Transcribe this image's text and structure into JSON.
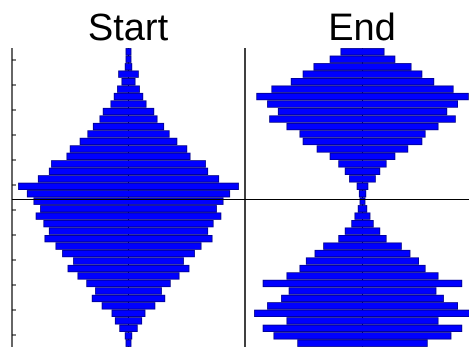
{
  "chart_data": [
    {
      "type": "bar",
      "orientation": "horizontal",
      "title": "Start",
      "xlabel": "",
      "ylabel": "",
      "ylim": [
        -1.0,
        1.0
      ],
      "color": "#0000ff",
      "grid": false,
      "bin_centers": [
        -0.975,
        -0.925,
        -0.875,
        -0.825,
        -0.775,
        -0.725,
        -0.675,
        -0.625,
        -0.575,
        -0.525,
        -0.475,
        -0.425,
        -0.375,
        -0.325,
        -0.275,
        -0.225,
        -0.175,
        -0.125,
        -0.075,
        -0.025,
        0.025,
        0.075,
        0.125,
        0.175,
        0.225,
        0.275,
        0.325,
        0.375,
        0.425,
        0.475,
        0.525,
        0.575,
        0.625,
        0.675,
        0.725,
        0.775,
        0.825,
        0.875,
        0.925,
        0.975
      ],
      "values": [
        0.005,
        0.03,
        0.08,
        0.12,
        0.15,
        0.24,
        0.33,
        0.3,
        0.38,
        0.46,
        0.55,
        0.5,
        0.6,
        0.66,
        0.76,
        0.72,
        0.77,
        0.84,
        0.8,
        0.86,
        0.92,
        1.0,
        0.82,
        0.72,
        0.7,
        0.56,
        0.53,
        0.44,
        0.37,
        0.32,
        0.26,
        0.23,
        0.16,
        0.13,
        0.1,
        0.06,
        0.09,
        0.03,
        0.02,
        0.005
      ]
    },
    {
      "type": "bar",
      "orientation": "horizontal",
      "title": "End",
      "xlabel": "",
      "ylabel": "",
      "ylim": [
        -1.0,
        1.0
      ],
      "color": "#0000ff",
      "grid": false,
      "bin_centers": [
        -0.975,
        -0.925,
        -0.875,
        -0.825,
        -0.775,
        -0.725,
        -0.675,
        -0.625,
        -0.575,
        -0.525,
        -0.475,
        -0.425,
        -0.375,
        -0.325,
        -0.275,
        -0.225,
        -0.175,
        -0.125,
        -0.075,
        -0.025,
        0.025,
        0.075,
        0.125,
        0.175,
        0.225,
        0.275,
        0.325,
        0.375,
        0.425,
        0.475,
        0.525,
        0.575,
        0.625,
        0.675,
        0.725,
        0.775,
        0.825,
        0.875,
        0.925,
        0.975
      ],
      "values": [
        0.6,
        0.82,
        0.92,
        0.7,
        1.0,
        0.88,
        0.75,
        0.68,
        0.92,
        0.7,
        0.58,
        0.52,
        0.44,
        0.36,
        0.22,
        0.16,
        0.1,
        0.07,
        0.04,
        0.02,
        0.03,
        0.05,
        0.12,
        0.16,
        0.22,
        0.3,
        0.42,
        0.55,
        0.58,
        0.7,
        0.86,
        0.78,
        0.88,
        0.98,
        0.84,
        0.66,
        0.55,
        0.45,
        0.3,
        0.2
      ]
    }
  ]
}
